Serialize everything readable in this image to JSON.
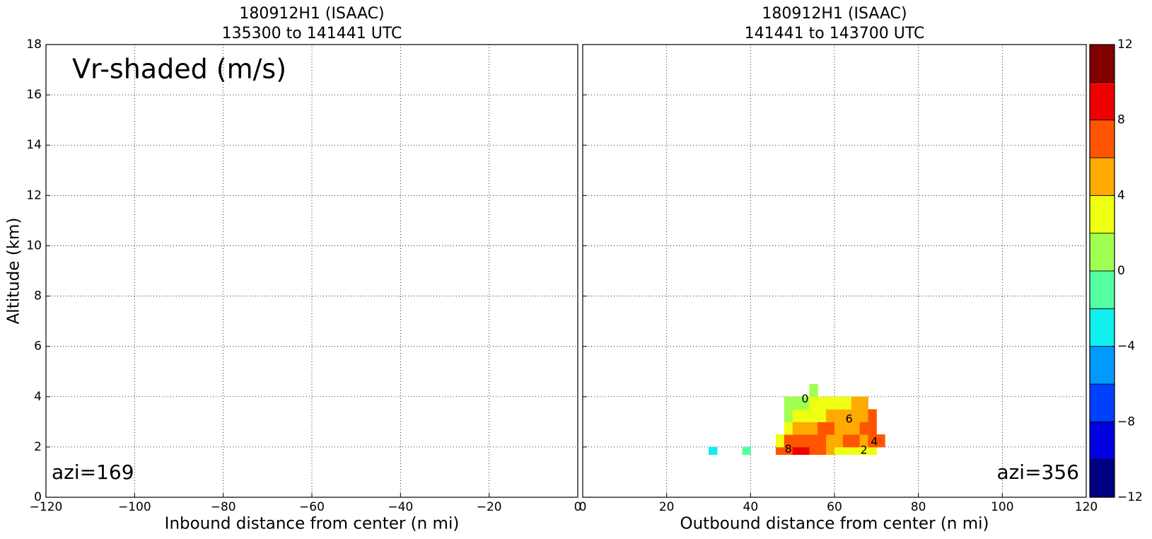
{
  "chart_data": [
    {
      "type": "heatmap",
      "title": "180912H1 (ISAAC)",
      "subtitle": "135300 to 141441 UTC",
      "xlabel": "Inbound distance from center (n mi)",
      "ylabel": "Altitude (km)",
      "xlim": [
        -120,
        0
      ],
      "ylim": [
        0,
        18
      ],
      "xticks": [
        {
          "value": -120,
          "label": "−120"
        },
        {
          "value": -100,
          "label": "−100"
        },
        {
          "value": -80,
          "label": "−80"
        },
        {
          "value": -60,
          "label": "−60"
        },
        {
          "value": -40,
          "label": "−40"
        },
        {
          "value": -20,
          "label": "−20"
        },
        0
      ],
      "yticks": [
        0,
        2,
        4,
        6,
        8,
        10,
        12,
        14,
        16,
        18
      ],
      "ytick_labels": true,
      "grid": true,
      "annotations": [
        "Vr-shaded (m/s)",
        "azi=169"
      ]
    },
    {
      "type": "heatmap",
      "title": "180912H1 (ISAAC)",
      "subtitle": "141441 to 143700 UTC",
      "xlabel": "Outbound distance from center (n mi)",
      "xlim": [
        0,
        120
      ],
      "ylim": [
        0,
        18
      ],
      "xticks": [
        0,
        20,
        40,
        60,
        80,
        100,
        120
      ],
      "yticks": [
        0,
        2,
        4,
        6,
        8,
        10,
        12,
        14,
        16,
        18
      ],
      "ytick_labels": false,
      "grid": true,
      "annotations": [
        "azi=356"
      ],
      "cells": {
        "x": [
          30,
          32,
          34,
          36,
          38,
          40,
          42,
          44,
          46,
          48,
          50,
          52,
          54,
          56,
          58,
          60,
          62,
          64,
          66,
          68,
          70,
          72
        ],
        "y": [
          1.7,
          2.0,
          2.5,
          3.0,
          3.5,
          4.0,
          4.5
        ],
        "values": [
          [
            -3,
            null,
            null,
            null,
            -1,
            null,
            null,
            null,
            7,
            7,
            9,
            9,
            7,
            7,
            5,
            3,
            3,
            3,
            3,
            3,
            null
          ],
          [
            null,
            null,
            null,
            null,
            null,
            null,
            null,
            null,
            3,
            7,
            7,
            7,
            7,
            7,
            5,
            5,
            7,
            7,
            5,
            7,
            7
          ],
          [
            null,
            null,
            null,
            null,
            null,
            null,
            null,
            null,
            null,
            3,
            5,
            5,
            5,
            7,
            7,
            5,
            5,
            5,
            7,
            7,
            null
          ],
          [
            null,
            null,
            null,
            null,
            null,
            null,
            null,
            null,
            null,
            1,
            3,
            3,
            3,
            3,
            5,
            5,
            5,
            5,
            5,
            7,
            null
          ],
          [
            null,
            null,
            null,
            null,
            null,
            null,
            null,
            null,
            null,
            1,
            1,
            1,
            3,
            3,
            3,
            3,
            3,
            5,
            5,
            null,
            null
          ],
          [
            null,
            null,
            null,
            null,
            null,
            null,
            null,
            null,
            null,
            null,
            null,
            null,
            1,
            null,
            null,
            null,
            null,
            null,
            null,
            null,
            null
          ]
        ]
      },
      "contour_labels": [
        {
          "x": 63.5,
          "y": 3.1,
          "value": 6
        },
        {
          "x": 69.5,
          "y": 2.2,
          "value": 4
        },
        {
          "x": 67,
          "y": 1.85,
          "value": 2
        },
        {
          "x": 53,
          "y": 3.9,
          "value": 0
        },
        {
          "x": 49,
          "y": 1.9,
          "value": 8
        }
      ],
      "colorbar": {
        "levels": [
          -12,
          -10,
          -8,
          -6,
          -4,
          -2,
          0,
          2,
          4,
          6,
          8,
          10,
          12
        ],
        "colors": [
          "#000080",
          "#0000e0",
          "#0040ff",
          "#0099ff",
          "#11eeee",
          "#55ffa0",
          "#a0ff50",
          "#eeff11",
          "#ffaa00",
          "#ff5500",
          "#ee0000",
          "#800000"
        ],
        "ticks": [
          {
            "value": -12,
            "label": "−12"
          },
          {
            "value": -8,
            "label": "−8"
          },
          {
            "value": -4,
            "label": "−4"
          },
          0,
          4,
          8,
          12
        ]
      }
    }
  ]
}
